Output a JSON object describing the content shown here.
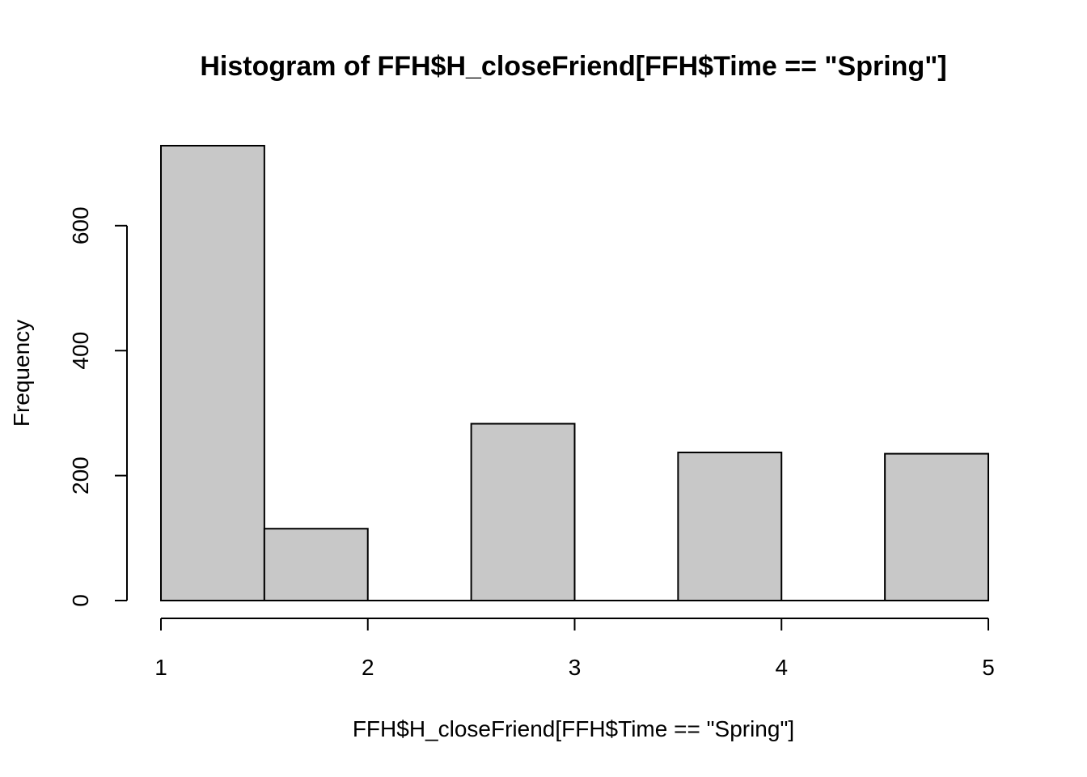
{
  "chart_data": {
    "type": "bar",
    "title": "Histogram of FFH$H_closeFriend[FFH$Time == \"Spring\"]",
    "xlabel": "FFH$H_closeFriend[FFH$Time == \"Spring\"]",
    "ylabel": "Frequency",
    "bins": [
      {
        "x0": 1.0,
        "x1": 1.5,
        "count": 728
      },
      {
        "x0": 1.5,
        "x1": 2.0,
        "count": 115
      },
      {
        "x0": 2.0,
        "x1": 2.5,
        "count": 0
      },
      {
        "x0": 2.5,
        "x1": 3.0,
        "count": 283
      },
      {
        "x0": 3.0,
        "x1": 3.5,
        "count": 0
      },
      {
        "x0": 3.5,
        "x1": 4.0,
        "count": 237
      },
      {
        "x0": 4.0,
        "x1": 4.5,
        "count": 0
      },
      {
        "x0": 4.5,
        "x1": 5.0,
        "count": 235
      }
    ],
    "xlim": [
      1,
      5
    ],
    "ylim": [
      0,
      728
    ],
    "xticks": [
      1,
      2,
      3,
      4,
      5
    ],
    "yticks": [
      0,
      200,
      400,
      600
    ],
    "grid": false,
    "bar_color": "#c8c8c8",
    "edge_color": "#000000"
  }
}
